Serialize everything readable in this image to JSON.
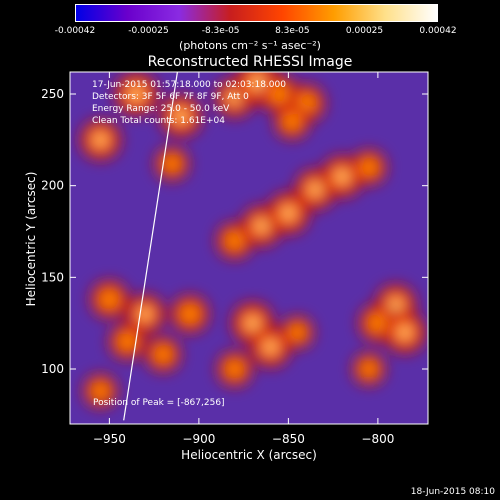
{
  "colorbar": {
    "tick_labels": [
      "-0.00042",
      "-0.00025",
      "-8.3e-05",
      "8.3e-05",
      "0.00025",
      "0.00042"
    ],
    "tick_values": [
      -0.00042,
      -0.00025,
      -8.3e-05,
      8.3e-05,
      0.00025,
      0.00042
    ],
    "units_label": "(photons cm⁻² s⁻¹ asec⁻²)",
    "colors": [
      "#0000e6",
      "#6a00cc",
      "#8a2be2",
      "#c81e1e",
      "#ff4500",
      "#ff9d00",
      "#ffe08a",
      "#ffffff"
    ]
  },
  "chart_data": {
    "type": "heatmap",
    "title": "Reconstructed RHESSI Image",
    "xlabel": "Heliocentric X (arcsec)",
    "ylabel": "Heliocentric Y (arcsec)",
    "xlim": [
      -972,
      -772
    ],
    "ylim": [
      70,
      262
    ],
    "x_ticks": [
      -950,
      -900,
      -850,
      -800
    ],
    "y_ticks": [
      100,
      150,
      200,
      250
    ],
    "x_tick_labels": [
      "−950",
      "−900",
      "−850",
      "−800"
    ],
    "y_tick_labels": [
      "100",
      "150",
      "200",
      "250"
    ],
    "annotations": [
      "17-Jun-2015 01:57:18.000 to 02:03:18.000",
      "Detectors: 3F 5F 6F 7F 8F 9F, Att 0",
      "Energy Range: 25.0 - 50.0 keV",
      "Clean    Total counts: 1.61E+04"
    ],
    "peak_label": "Position of Peak = [-867,256]",
    "peak": [
      -867,
      256
    ],
    "limb_line": [
      [
        -942,
        72
      ],
      [
        -912,
        262
      ]
    ],
    "bright_regions": [
      {
        "x": -935,
        "y": 250,
        "intensity": 0.9
      },
      {
        "x": -955,
        "y": 225,
        "intensity": 0.8
      },
      {
        "x": -910,
        "y": 238,
        "intensity": 0.85
      },
      {
        "x": -880,
        "y": 248,
        "intensity": 0.75
      },
      {
        "x": -867,
        "y": 256,
        "intensity": 1.0
      },
      {
        "x": -855,
        "y": 250,
        "intensity": 0.7
      },
      {
        "x": -840,
        "y": 245,
        "intensity": 0.7
      },
      {
        "x": -848,
        "y": 235,
        "intensity": 0.6
      },
      {
        "x": -915,
        "y": 212,
        "intensity": 0.55
      },
      {
        "x": -880,
        "y": 170,
        "intensity": 0.65
      },
      {
        "x": -865,
        "y": 178,
        "intensity": 0.8
      },
      {
        "x": -850,
        "y": 185,
        "intensity": 0.85
      },
      {
        "x": -835,
        "y": 198,
        "intensity": 0.8
      },
      {
        "x": -820,
        "y": 205,
        "intensity": 0.85
      },
      {
        "x": -805,
        "y": 210,
        "intensity": 0.6
      },
      {
        "x": -950,
        "y": 138,
        "intensity": 0.7
      },
      {
        "x": -930,
        "y": 130,
        "intensity": 0.75
      },
      {
        "x": -940,
        "y": 115,
        "intensity": 0.65
      },
      {
        "x": -920,
        "y": 108,
        "intensity": 0.6
      },
      {
        "x": -905,
        "y": 130,
        "intensity": 0.7
      },
      {
        "x": -870,
        "y": 125,
        "intensity": 0.85
      },
      {
        "x": -860,
        "y": 112,
        "intensity": 0.8
      },
      {
        "x": -880,
        "y": 100,
        "intensity": 0.6
      },
      {
        "x": -845,
        "y": 120,
        "intensity": 0.5
      },
      {
        "x": -790,
        "y": 135,
        "intensity": 0.8
      },
      {
        "x": -800,
        "y": 125,
        "intensity": 0.7
      },
      {
        "x": -785,
        "y": 120,
        "intensity": 0.85
      },
      {
        "x": -805,
        "y": 100,
        "intensity": 0.5
      },
      {
        "x": -955,
        "y": 88,
        "intensity": 0.55
      }
    ]
  },
  "timestamp": "18-Jun-2015 08:10"
}
